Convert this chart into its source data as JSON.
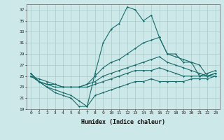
{
  "xlabel": "Humidex (Indice chaleur)",
  "ylabel": "",
  "xlim": [
    -0.5,
    23.5
  ],
  "ylim": [
    19,
    38
  ],
  "yticks": [
    19,
    21,
    23,
    25,
    27,
    29,
    31,
    33,
    35,
    37
  ],
  "xticks": [
    0,
    1,
    2,
    3,
    4,
    5,
    6,
    7,
    8,
    9,
    10,
    11,
    12,
    13,
    14,
    15,
    16,
    17,
    18,
    19,
    20,
    21,
    22,
    23
  ],
  "background_color": "#cce8e8",
  "grid_color": "#aacccc",
  "line_color": "#1a6b6b",
  "series": {
    "max": [
      25.5,
      24.0,
      23.0,
      22.0,
      21.5,
      21.0,
      19.5,
      19.5,
      25.5,
      31.0,
      33.5,
      34.5,
      37.5,
      37.0,
      35.0,
      36.0,
      32.0,
      29.0,
      29.0,
      27.5,
      27.5,
      25.0,
      25.5,
      26.0
    ],
    "p75": [
      25.0,
      24.5,
      24.0,
      23.5,
      23.0,
      23.0,
      23.0,
      23.5,
      25.0,
      26.5,
      27.5,
      28.0,
      29.0,
      30.0,
      31.0,
      31.5,
      32.0,
      29.0,
      28.5,
      28.0,
      27.5,
      27.0,
      25.0,
      25.5
    ],
    "p50": [
      25.0,
      24.0,
      23.5,
      23.5,
      23.0,
      23.0,
      23.0,
      23.5,
      24.0,
      25.0,
      25.5,
      26.0,
      26.5,
      27.0,
      27.5,
      28.0,
      28.5,
      27.5,
      27.0,
      26.5,
      26.0,
      25.5,
      25.0,
      25.0
    ],
    "p25": [
      25.0,
      24.0,
      23.5,
      23.0,
      23.0,
      23.0,
      23.0,
      23.0,
      23.5,
      24.0,
      24.5,
      25.0,
      25.5,
      26.0,
      26.0,
      26.0,
      26.5,
      26.0,
      25.5,
      25.0,
      25.0,
      25.0,
      25.0,
      25.5
    ],
    "min": [
      25.5,
      24.0,
      23.0,
      22.5,
      22.0,
      21.5,
      20.5,
      19.5,
      21.5,
      22.0,
      22.5,
      23.0,
      23.5,
      24.0,
      24.0,
      24.5,
      24.0,
      24.0,
      24.0,
      24.0,
      24.5,
      24.5,
      24.5,
      25.0
    ]
  }
}
